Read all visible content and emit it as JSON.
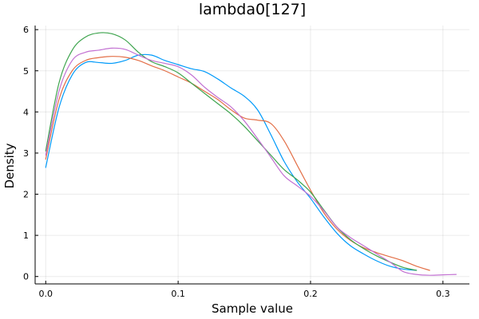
{
  "chart_data": {
    "type": "line",
    "title": "lambda0[127]",
    "xlabel": "Sample value",
    "ylabel": "Density",
    "xlim": [
      -0.008,
      0.32
    ],
    "ylim": [
      -0.18,
      6.1
    ],
    "xticks": [
      0.0,
      0.1,
      0.2,
      0.3
    ],
    "xtick_labels": [
      "0.0",
      "0.1",
      "0.2",
      "0.3"
    ],
    "yticks": [
      0,
      1,
      2,
      3,
      4,
      5,
      6
    ],
    "ytick_labels": [
      "0",
      "1",
      "2",
      "3",
      "4",
      "5",
      "6"
    ],
    "grid": true,
    "legend": "none",
    "series": [
      {
        "color": "#009AFA",
        "x": [
          0.0,
          0.01,
          0.02,
          0.03,
          0.04,
          0.05,
          0.06,
          0.07,
          0.08,
          0.09,
          0.1,
          0.11,
          0.12,
          0.13,
          0.14,
          0.15,
          0.16,
          0.17,
          0.18,
          0.19,
          0.2,
          0.21,
          0.22,
          0.23,
          0.24,
          0.25,
          0.26,
          0.27,
          0.28
        ],
        "y": [
          2.65,
          4.1,
          4.9,
          5.2,
          5.2,
          5.18,
          5.25,
          5.38,
          5.38,
          5.25,
          5.15,
          5.05,
          4.98,
          4.8,
          4.58,
          4.38,
          4.05,
          3.45,
          2.8,
          2.3,
          1.9,
          1.45,
          1.05,
          0.75,
          0.55,
          0.38,
          0.25,
          0.18,
          0.15
        ]
      },
      {
        "color": "#E36F47",
        "x": [
          0.0,
          0.01,
          0.02,
          0.03,
          0.04,
          0.05,
          0.06,
          0.07,
          0.08,
          0.09,
          0.1,
          0.11,
          0.12,
          0.13,
          0.14,
          0.15,
          0.16,
          0.17,
          0.18,
          0.19,
          0.2,
          0.21,
          0.22,
          0.23,
          0.24,
          0.25,
          0.26,
          0.27,
          0.28,
          0.29
        ],
        "y": [
          2.85,
          4.3,
          5.0,
          5.25,
          5.32,
          5.35,
          5.33,
          5.25,
          5.12,
          5.0,
          4.85,
          4.7,
          4.5,
          4.3,
          4.05,
          3.85,
          3.8,
          3.72,
          3.3,
          2.7,
          2.1,
          1.55,
          1.15,
          0.88,
          0.7,
          0.58,
          0.48,
          0.38,
          0.25,
          0.15
        ]
      },
      {
        "color": "#3EA44E",
        "x": [
          0.0,
          0.01,
          0.02,
          0.03,
          0.04,
          0.05,
          0.06,
          0.07,
          0.08,
          0.09,
          0.1,
          0.11,
          0.12,
          0.13,
          0.14,
          0.15,
          0.16,
          0.17,
          0.18,
          0.19,
          0.2,
          0.21,
          0.22,
          0.23,
          0.24,
          0.25,
          0.26,
          0.27,
          0.28
        ],
        "y": [
          3.05,
          4.7,
          5.5,
          5.82,
          5.92,
          5.9,
          5.75,
          5.45,
          5.22,
          5.1,
          4.95,
          4.7,
          4.45,
          4.2,
          3.95,
          3.65,
          3.3,
          2.95,
          2.6,
          2.35,
          2.05,
          1.62,
          1.2,
          0.9,
          0.68,
          0.5,
          0.35,
          0.22,
          0.15
        ]
      },
      {
        "color": "#C271D2",
        "x": [
          0.0,
          0.01,
          0.02,
          0.03,
          0.04,
          0.05,
          0.06,
          0.07,
          0.08,
          0.09,
          0.1,
          0.11,
          0.12,
          0.13,
          0.14,
          0.15,
          0.16,
          0.17,
          0.18,
          0.19,
          0.2,
          0.21,
          0.22,
          0.23,
          0.24,
          0.25,
          0.26,
          0.27,
          0.28,
          0.29,
          0.3,
          0.31
        ],
        "y": [
          2.95,
          4.5,
          5.25,
          5.45,
          5.5,
          5.55,
          5.52,
          5.38,
          5.25,
          5.18,
          5.1,
          4.9,
          4.6,
          4.35,
          4.12,
          3.78,
          3.35,
          2.9,
          2.45,
          2.2,
          1.95,
          1.6,
          1.2,
          0.95,
          0.75,
          0.55,
          0.35,
          0.12,
          0.05,
          0.03,
          0.04,
          0.05
        ]
      }
    ]
  }
}
